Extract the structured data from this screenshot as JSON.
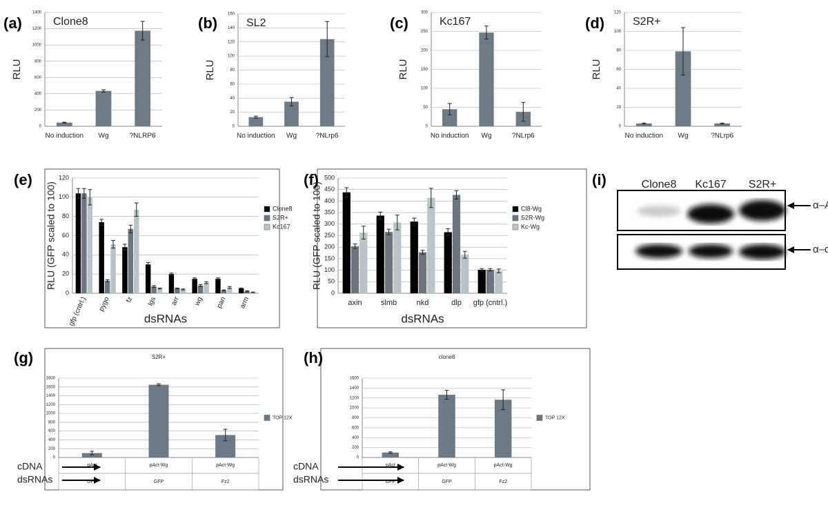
{
  "chart_data": [
    {
      "type": "bar",
      "label": "(a)",
      "title": "Clone8",
      "y_label": "RLU",
      "categories": [
        "No induction",
        "Wg",
        "?NLRP6"
      ],
      "values": [
        45,
        435,
        1175
      ],
      "errors": [
        5,
        15,
        115
      ],
      "color": "#6d7b86",
      "ylim": [
        0,
        1400
      ],
      "yticks": [
        0,
        200,
        400,
        600,
        800,
        1000,
        1200,
        1400
      ],
      "grid": true
    },
    {
      "type": "bar",
      "label": "(b)",
      "title": "SL2",
      "y_label": "RLU",
      "categories": [
        "No induction",
        "Wg",
        "?NLrp6"
      ],
      "values": [
        13,
        35,
        124
      ],
      "errors": [
        1.5,
        6,
        25
      ],
      "color": "#6d7b86",
      "ylim": [
        0,
        160
      ],
      "yticks": [
        0,
        20,
        40,
        60,
        80,
        100,
        120,
        140,
        160
      ],
      "grid": true
    },
    {
      "type": "bar",
      "label": "(c)",
      "title": "Kc167",
      "y_label": "RLU",
      "categories": [
        "No induction",
        "Wg",
        "?NLrp6"
      ],
      "values": [
        45,
        247,
        38
      ],
      "errors": [
        15,
        17,
        25
      ],
      "color": "#6d7b86",
      "ylim": [
        0,
        300
      ],
      "yticks": [
        0,
        50,
        100,
        150,
        200,
        250,
        300
      ],
      "grid": true
    },
    {
      "type": "bar",
      "label": "(d)",
      "title": "S2R+",
      "y_label": "RLU",
      "categories": [
        "No induction",
        "Wg",
        "?NLrp6"
      ],
      "values": [
        3,
        79,
        3
      ],
      "errors": [
        0.5,
        25,
        0.5
      ],
      "color": "#6d7b86",
      "ylim": [
        0,
        120
      ],
      "yticks": [
        0,
        20,
        40,
        60,
        80,
        100,
        120
      ],
      "grid": true
    },
    {
      "type": "bar",
      "label": "(e)",
      "x_label": "dsRNAs",
      "y_label": "RLU (GFP scaled to 100)",
      "categories": [
        "gfp (cntrl.)",
        "pygo",
        "fz",
        "lgs",
        "arr",
        "wg",
        "pan",
        "arm"
      ],
      "series": [
        {
          "name": "Clone8",
          "color": "#000000",
          "values": [
            104,
            74,
            48,
            30,
            20,
            15,
            15,
            5
          ],
          "errors": [
            5,
            3,
            3,
            2,
            1,
            1,
            1,
            0.5
          ]
        },
        {
          "name": "S2R+",
          "color": "#6b7680",
          "values": [
            104,
            13,
            67,
            7,
            5,
            8,
            3,
            2
          ],
          "errors": [
            5,
            1,
            4,
            1,
            0.5,
            1,
            0.5,
            0.5
          ]
        },
        {
          "name": "Kc167",
          "color": "#b9c4c8",
          "values": [
            100,
            51,
            87,
            5,
            4,
            11,
            6,
            1
          ],
          "errors": [
            8,
            4,
            7,
            0.5,
            0.5,
            1,
            1,
            0.3
          ]
        }
      ],
      "ylim": [
        0,
        120
      ],
      "yticks": [
        0,
        20,
        40,
        60,
        80,
        100,
        120
      ],
      "grid": true,
      "legend": "right"
    },
    {
      "type": "bar",
      "label": "(f)",
      "x_label": "dsRNAs",
      "y_label": "RLU (GFP scaled to 100)",
      "categories": [
        "axin",
        "slmb",
        "nkd",
        "dlp",
        "gfp (cntrl.)"
      ],
      "series": [
        {
          "name": "Cl8-Wg",
          "color": "#000000",
          "values": [
            438,
            337,
            311,
            265,
            102
          ],
          "errors": [
            20,
            15,
            15,
            15,
            5
          ]
        },
        {
          "name": "S2R-Wg",
          "color": "#6b7680",
          "values": [
            204,
            266,
            178,
            427,
            102
          ],
          "errors": [
            10,
            12,
            8,
            18,
            5
          ]
        },
        {
          "name": "Kc-Wg",
          "color": "#b9c4c8",
          "values": [
            263,
            307,
            414,
            167,
            97
          ],
          "errors": [
            28,
            32,
            42,
            15,
            8
          ]
        }
      ],
      "ylim": [
        0,
        500
      ],
      "yticks": [
        0,
        50,
        100,
        150,
        200,
        250,
        300,
        350,
        400,
        450,
        500
      ],
      "grid": true,
      "legend": "right"
    },
    {
      "type": "bar",
      "label": "(g)",
      "title": "S2R+",
      "categories": [
        "pAct",
        "pAct-Wg",
        "pAct-Wg"
      ],
      "row_labels": [
        "cDNA",
        "dsRNAs"
      ],
      "dsRNAs": [
        "GFP",
        "GFP",
        "Fz2"
      ],
      "series": [
        {
          "name": "TOP 12X",
          "color": "#6c7a85",
          "values": [
            100,
            1650,
            510
          ],
          "errors": [
            40,
            20,
            130
          ]
        }
      ],
      "ylim": [
        0,
        1800
      ],
      "yticks": [
        0,
        200,
        400,
        600,
        800,
        1000,
        1200,
        1400,
        1600,
        1800
      ],
      "grid": true,
      "legend": "right"
    },
    {
      "type": "bar",
      "label": "(h)",
      "title": "clone8",
      "categories": [
        "pAct",
        "pAct-Wg",
        "pAct-Wg"
      ],
      "row_labels": [
        "cDNA",
        "dsRNAs"
      ],
      "dsRNAs": [
        "GFP",
        "GFP",
        "Fz2"
      ],
      "series": [
        {
          "name": "TOP 12X",
          "color": "#6c7a85",
          "values": [
            100,
            1265,
            1165
          ],
          "errors": [
            15,
            90,
            200
          ]
        }
      ],
      "ylim": [
        0,
        1600
      ],
      "yticks": [
        0,
        200,
        400,
        600,
        800,
        1000,
        1200,
        1400,
        1600
      ],
      "grid": true,
      "legend": "right"
    }
  ],
  "blot": {
    "label": "(i)",
    "lanes": [
      "Clone8",
      "Kc167",
      "S2R+"
    ],
    "antibodies": [
      "α–Axin",
      "α–αtub"
    ]
  }
}
